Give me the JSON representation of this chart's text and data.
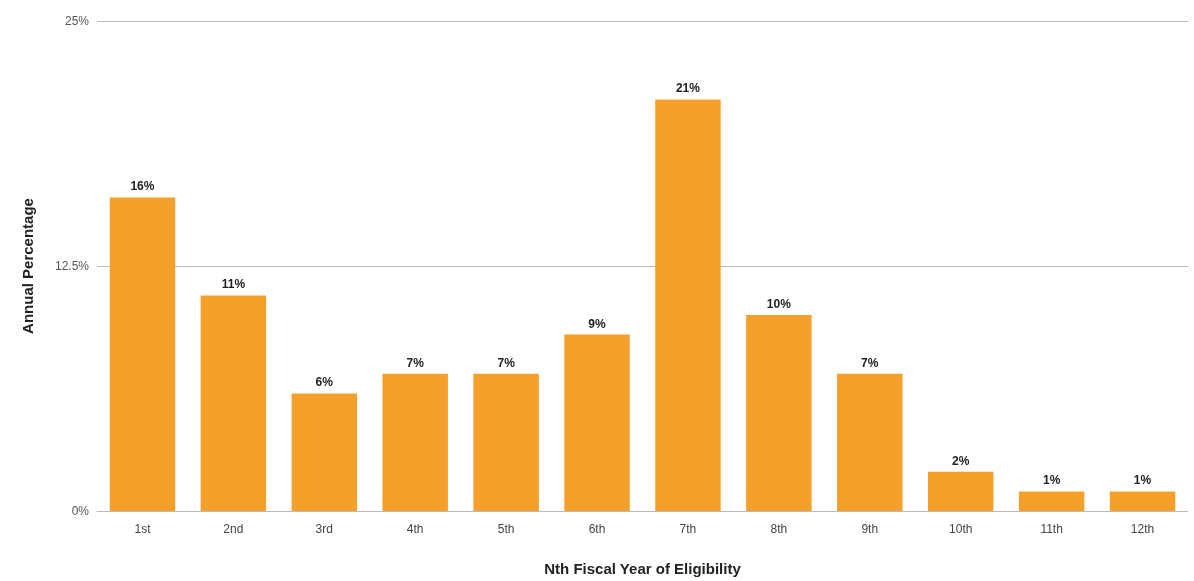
{
  "chart_data": {
    "type": "bar",
    "xlabel": "Nth Fiscal Year of Eligibility",
    "ylabel": "Annual Percentage",
    "categories": [
      "1st",
      "2nd",
      "3rd",
      "4th",
      "5th",
      "6th",
      "7th",
      "8th",
      "9th",
      "10th",
      "11th",
      "12th"
    ],
    "values": [
      16,
      11,
      6,
      7,
      7,
      9,
      21,
      10,
      7,
      2,
      1,
      1
    ],
    "value_labels": [
      "16%",
      "11%",
      "6%",
      "7%",
      "7%",
      "9%",
      "21%",
      "10%",
      "7%",
      "2%",
      "1%",
      "1%"
    ],
    "color": "#f5a02a",
    "ylim": [
      0,
      25
    ],
    "yticks": [
      {
        "value": 0,
        "label": "0%"
      },
      {
        "value": 12.5,
        "label": "12.5%"
      },
      {
        "value": 25,
        "label": "25%"
      }
    ],
    "grid": "y"
  }
}
